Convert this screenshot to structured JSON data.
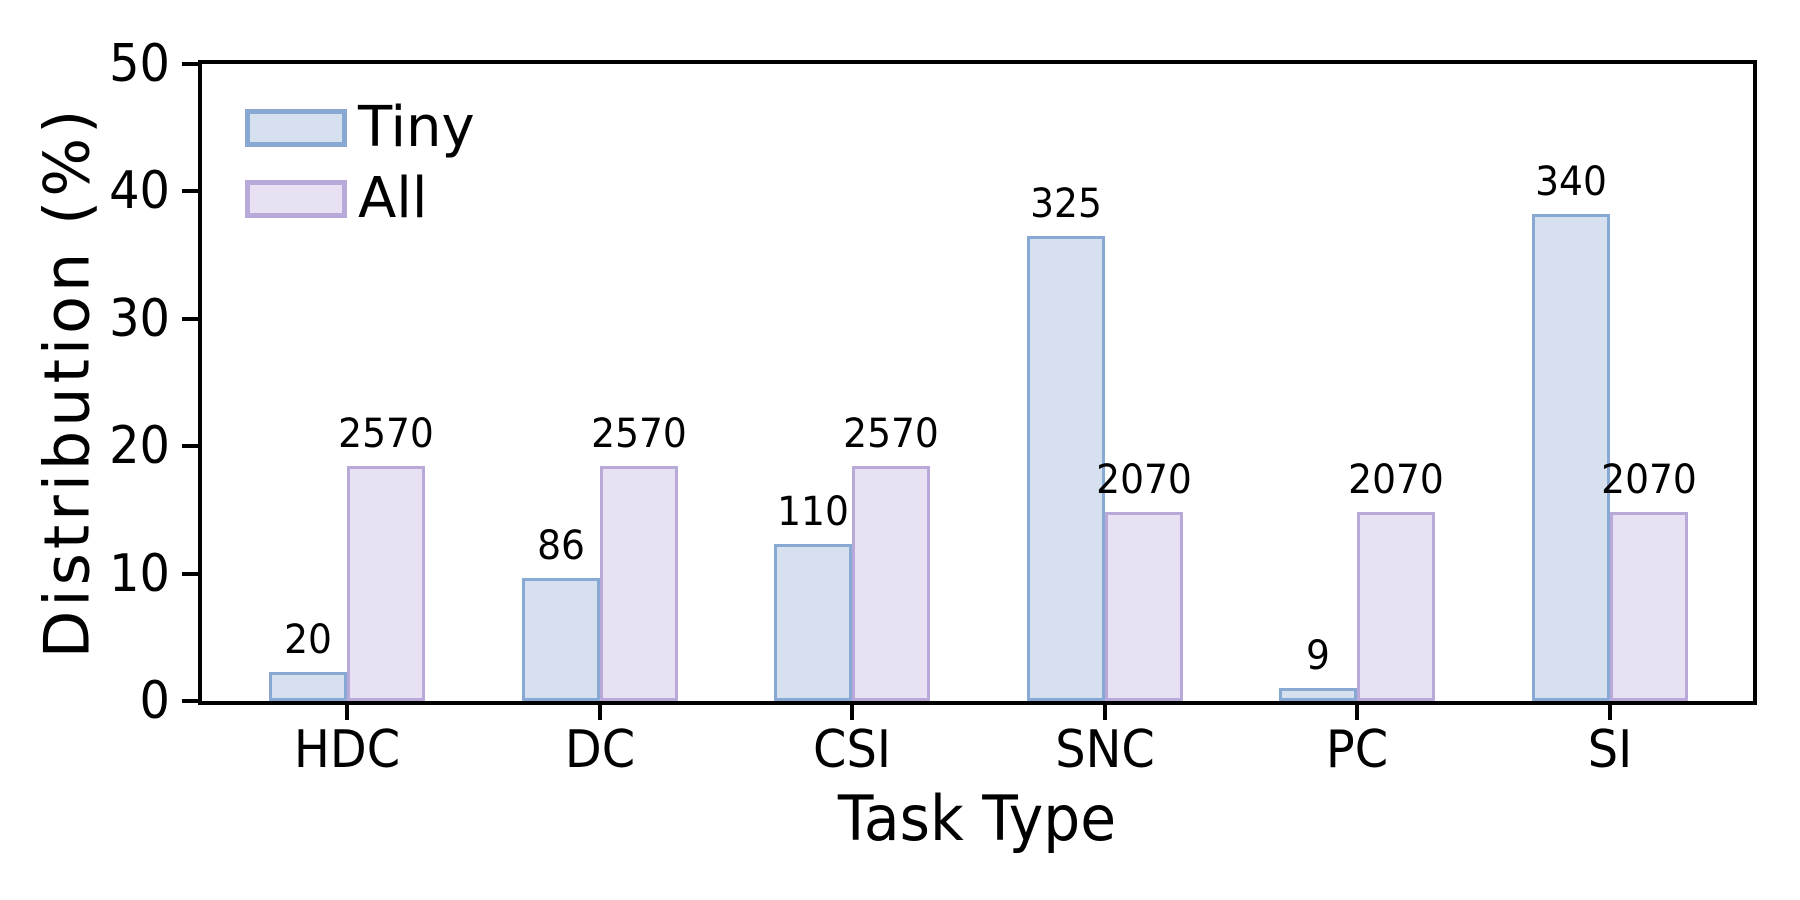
{
  "chart_data": {
    "type": "bar",
    "title": "",
    "xlabel": "Task Type",
    "ylabel": "Distribution (%)",
    "categories": [
      "HDC",
      "DC",
      "CSI",
      "SNC",
      "PC",
      "SI"
    ],
    "series": [
      {
        "name": "Tiny",
        "values": [
          2.25,
          9.66,
          12.36,
          36.52,
          1.01,
          38.2
        ],
        "counts": [
          "20",
          "86",
          "110",
          "325",
          "9",
          "340"
        ],
        "fill": "#d6e0ef",
        "edge": "#89a9d5"
      },
      {
        "name": "All",
        "values": [
          18.46,
          18.46,
          18.46,
          14.87,
          14.87,
          14.87
        ],
        "counts": [
          "2570",
          "2570",
          "2570",
          "2070",
          "2070",
          "2070"
        ],
        "fill": "#e7e1f3",
        "edge": "#b9a9d9"
      }
    ],
    "ylim": [
      0,
      50
    ],
    "yticks": [
      "0",
      "10",
      "20",
      "30",
      "40",
      "50"
    ],
    "grid": false,
    "legend_position": "upper-left",
    "axis_color": "#000000",
    "text_color": "#000000"
  }
}
